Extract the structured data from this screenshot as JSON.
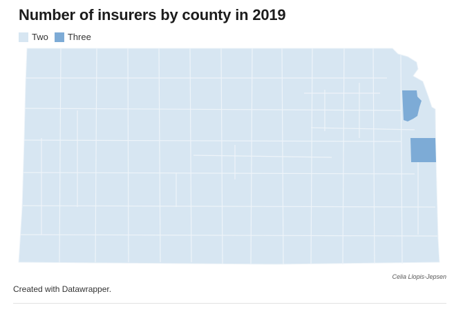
{
  "title": "Number of insurers by county in 2019",
  "legend": [
    {
      "label": "Two",
      "color": "#d7e6f2"
    },
    {
      "label": "Three",
      "color": "#7dabd6"
    }
  ],
  "credit": "Celia Llopis-Jepsen",
  "footer": "Created with Datawrapper.",
  "colors": {
    "county_border": "#eef4f9",
    "state_fill": "#d7e6f2",
    "highlight": "#7dabd6"
  }
}
